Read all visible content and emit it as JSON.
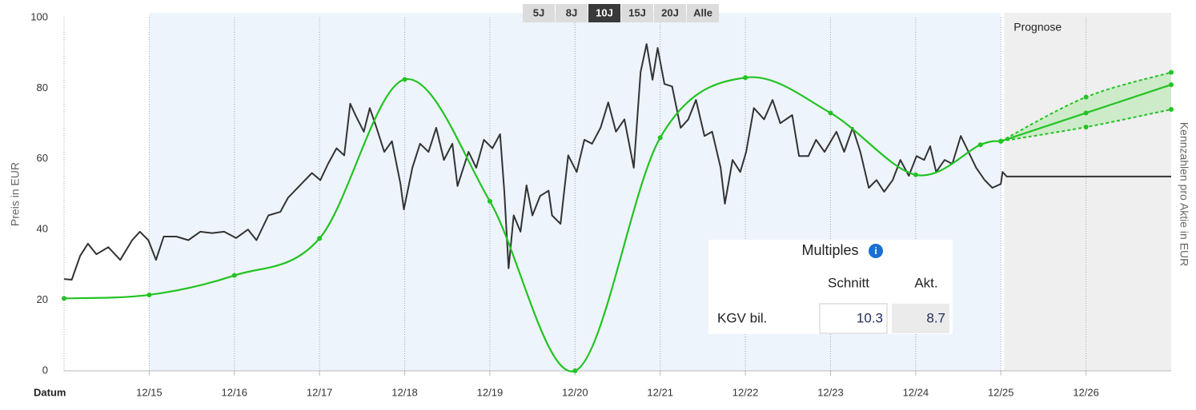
{
  "range_buttons": [
    "5J",
    "8J",
    "10J",
    "15J",
    "20J",
    "Alle"
  ],
  "active_range": "10J",
  "chart_data": {
    "type": "line",
    "y_label": "Preis in EUR",
    "y2_label": "Kennzahlen pro Aktie in EUR",
    "x_label": "Datum",
    "xlim": [
      2014.92,
      2027.92
    ],
    "xticks": [
      {
        "value": 2015.92,
        "label": "12/15"
      },
      {
        "value": 2016.92,
        "label": "12/16"
      },
      {
        "value": 2017.92,
        "label": "12/17"
      },
      {
        "value": 2018.92,
        "label": "12/18"
      },
      {
        "value": 2019.92,
        "label": "12/19"
      },
      {
        "value": 2020.92,
        "label": "12/20"
      },
      {
        "value": 2021.92,
        "label": "12/21"
      },
      {
        "value": 2022.92,
        "label": "12/22"
      },
      {
        "value": 2023.92,
        "label": "12/23"
      },
      {
        "value": 2024.92,
        "label": "12/24"
      },
      {
        "value": 2025.92,
        "label": "12/25"
      },
      {
        "value": 2026.92,
        "label": "12/26"
      }
    ],
    "ylim": [
      0,
      100
    ],
    "yticks": [
      0,
      20,
      40,
      60,
      80,
      100
    ],
    "x_grid": true,
    "highlight_region": [
      2015.92,
      2025.92
    ],
    "highlight_color": "#eef4fc",
    "forecast_region": [
      2025.92,
      2027.92
    ],
    "forecast_color": "#efefef",
    "forecast_label": "Prognose",
    "band_color": "#cdebc9",
    "series": [
      {
        "color": "#333333",
        "width": 2,
        "x": [
          2014.92,
          2015.01,
          2015.11,
          2015.2,
          2015.3,
          2015.44,
          2015.58,
          2015.72,
          2015.81,
          2015.91,
          2016.0,
          2016.09,
          2016.24,
          2016.38,
          2016.52,
          2016.66,
          2016.8,
          2016.94,
          2017.08,
          2017.18,
          2017.32,
          2017.46,
          2017.55,
          2017.69,
          2017.83,
          2017.93,
          2018.02,
          2018.12,
          2018.21,
          2018.28,
          2018.35,
          2018.44,
          2018.51,
          2018.59,
          2018.68,
          2018.77,
          2018.87,
          2018.91,
          2019.01,
          2019.1,
          2019.2,
          2019.29,
          2019.38,
          2019.48,
          2019.54,
          2019.67,
          2019.76,
          2019.85,
          2019.95,
          2020.04,
          2020.09,
          2020.14,
          2020.2,
          2020.28,
          2020.35,
          2020.42,
          2020.51,
          2020.61,
          2020.65,
          2020.75,
          2020.84,
          2020.94,
          2021.03,
          2021.12,
          2021.22,
          2021.31,
          2021.4,
          2021.5,
          2021.61,
          2021.69,
          2021.76,
          2021.83,
          2021.89,
          2021.97,
          2022.06,
          2022.16,
          2022.25,
          2022.34,
          2022.44,
          2022.53,
          2022.63,
          2022.68,
          2022.77,
          2022.86,
          2022.93,
          2023.02,
          2023.14,
          2023.24,
          2023.33,
          2023.47,
          2023.55,
          2023.66,
          2023.75,
          2023.85,
          2023.99,
          2024.08,
          2024.18,
          2024.27,
          2024.37,
          2024.46,
          2024.55,
          2024.65,
          2024.74,
          2024.84,
          2024.93,
          2025.02,
          2025.09,
          2025.16,
          2025.26,
          2025.35,
          2025.45,
          2025.54,
          2025.63,
          2025.73,
          2025.82,
          2025.92,
          2025.94,
          2025.99,
          2027.92
        ],
        "values": [
          26,
          25.8,
          32.6,
          36,
          33,
          35,
          31.4,
          37,
          39.4,
          37,
          31.4,
          38,
          38,
          37,
          39.4,
          39,
          39.4,
          37.6,
          40,
          37,
          44,
          45,
          49,
          52.5,
          56,
          54,
          58.6,
          63,
          61,
          75.6,
          72,
          67.7,
          74.4,
          68.8,
          62,
          65,
          53,
          45.7,
          57.5,
          64.3,
          62,
          68.8,
          59.7,
          64.3,
          52.3,
          62,
          57.5,
          65.4,
          63,
          67,
          50.7,
          29,
          44,
          39.4,
          52.5,
          44,
          49.5,
          51,
          44,
          41.6,
          61,
          56.3,
          65.4,
          64.3,
          68.8,
          76,
          67.7,
          71.2,
          57.5,
          84.6,
          92.5,
          82.4,
          91.4,
          81.2,
          80.5,
          68.8,
          71.2,
          76.7,
          66.5,
          67.7,
          57.5,
          47.3,
          59.7,
          56.3,
          62,
          74.4,
          71.2,
          76.7,
          70.1,
          72.4,
          60.8,
          60.8,
          65.4,
          62,
          67.7,
          62,
          68.8,
          62,
          51.8,
          54,
          50.7,
          54,
          59.7,
          55.2,
          60.8,
          59.7,
          63.6,
          56.3,
          59.7,
          58.6,
          66.5,
          62,
          57.5,
          54,
          51.8,
          52.9,
          56.3,
          55,
          55
        ]
      },
      {
        "color": "#22c322",
        "width": 2.2,
        "smooth": true,
        "markers": true,
        "x": [
          2014.92,
          2015.92,
          2016.92,
          2017.92,
          2018.92,
          2019.92,
          2020.92,
          2021.92,
          2022.92,
          2023.92,
          2024.92,
          2025.68,
          2025.92
        ],
        "values": [
          20.5,
          21.5,
          27,
          37.5,
          82.5,
          48,
          0,
          66,
          83,
          73,
          55.5,
          64,
          65
        ]
      },
      {
        "color": "#22c322",
        "width": 2.2,
        "smooth": true,
        "markers": true,
        "x": [
          2025.92,
          2026.92,
          2027.92
        ],
        "values": [
          65,
          73,
          81
        ]
      },
      {
        "color": "#22c322",
        "width": 2,
        "smooth": true,
        "markers": true,
        "dash": true,
        "x": [
          2025.92,
          2026.92,
          2027.92
        ],
        "values": [
          65,
          77.5,
          84.5
        ]
      },
      {
        "color": "#22c322",
        "width": 2,
        "smooth": true,
        "markers": true,
        "dash": true,
        "x": [
          2025.92,
          2026.92,
          2027.92
        ],
        "values": [
          65,
          69,
          74
        ]
      }
    ]
  },
  "multiples": {
    "title": "Multiples",
    "info_icon": "i",
    "headers": [
      "Schnitt",
      "Akt."
    ],
    "rows": [
      {
        "label": "KGV bil.",
        "values": [
          10.3,
          8.7
        ]
      }
    ]
  }
}
